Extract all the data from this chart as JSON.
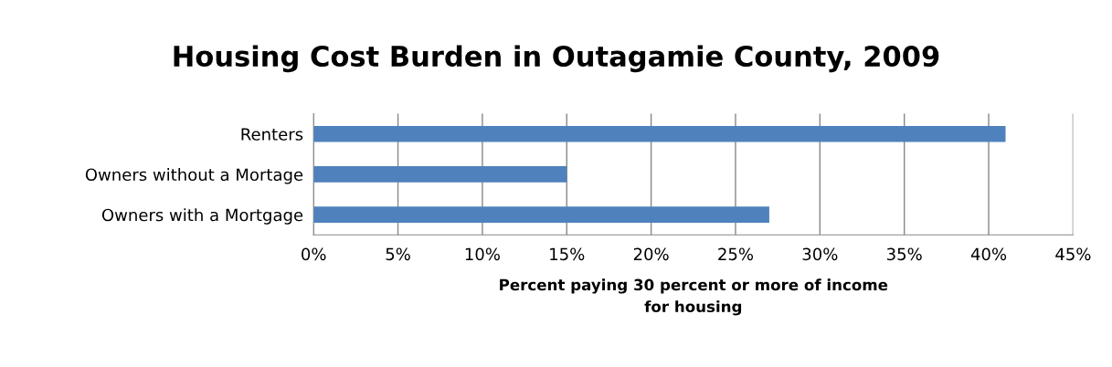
{
  "chart_data": {
    "type": "bar",
    "orientation": "horizontal",
    "title": "Housing Cost Burden in Outagamie County, 2009",
    "xlabel": "Percent paying 30 percent or more of income\nfor housing",
    "categories": [
      "Renters",
      "Owners without a Mortage",
      "Owners with a Mortgage"
    ],
    "values": [
      41,
      15,
      27
    ],
    "color": "#4f81bd",
    "xlim": [
      0,
      45
    ],
    "xticks": [
      {
        "value": 0,
        "label": "0%"
      },
      {
        "value": 5,
        "label": "5%"
      },
      {
        "value": 10,
        "label": "10%"
      },
      {
        "value": 15,
        "label": "15%"
      },
      {
        "value": 20,
        "label": "20%"
      },
      {
        "value": 25,
        "label": "25%"
      },
      {
        "value": 30,
        "label": "30%"
      },
      {
        "value": 35,
        "label": "35%"
      },
      {
        "value": 40,
        "label": "40%"
      },
      {
        "value": 45,
        "label": "45%"
      }
    ],
    "grid": "x",
    "legend": false
  }
}
